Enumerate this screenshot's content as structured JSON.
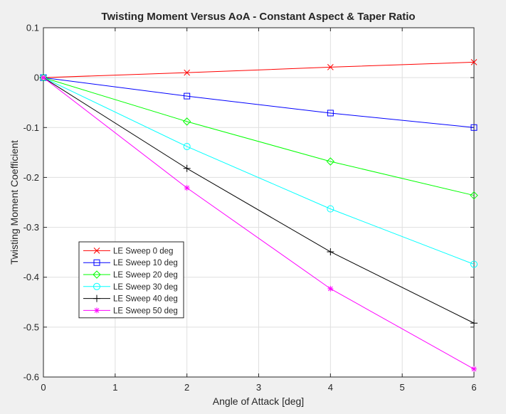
{
  "chart_data": {
    "type": "line",
    "title": "Twisting Moment Versus AoA - Constant Aspect & Taper Ratio",
    "xlabel": "Angle of Attack [deg]",
    "ylabel": "Twisting Moment Coefficient",
    "xlim": [
      0,
      6
    ],
    "ylim": [
      -0.6,
      0.1
    ],
    "xticks": [
      0,
      1,
      2,
      3,
      4,
      5,
      6
    ],
    "xtick_labels": [
      "0",
      "1",
      "2",
      "3",
      "4",
      "5",
      "6"
    ],
    "yticks": [
      0.1,
      0,
      -0.1,
      -0.2,
      -0.3,
      -0.4,
      -0.5,
      -0.6
    ],
    "ytick_labels": [
      "0.1",
      "0",
      "-0.1",
      "-0.2",
      "-0.3",
      "-0.4",
      "-0.5",
      "-0.6"
    ],
    "grid": true,
    "legend_position": "lower-left",
    "x": [
      0,
      2,
      4,
      6
    ],
    "series": [
      {
        "name": "LE Sweep 0 deg",
        "color": "#ff0000",
        "marker": "x",
        "values": [
          0,
          0.01,
          0.021,
          0.031
        ]
      },
      {
        "name": "LE Sweep 10 deg",
        "color": "#0000ff",
        "marker": "square",
        "values": [
          0,
          -0.037,
          -0.071,
          -0.1
        ]
      },
      {
        "name": "LE Sweep 20 deg",
        "color": "#00ff00",
        "marker": "diamond",
        "values": [
          0,
          -0.088,
          -0.168,
          -0.236
        ]
      },
      {
        "name": "LE Sweep 30 deg",
        "color": "#00ffff",
        "marker": "circle",
        "values": [
          0,
          -0.138,
          -0.263,
          -0.374
        ]
      },
      {
        "name": "LE Sweep 40 deg",
        "color": "#000000",
        "marker": "plus",
        "values": [
          0,
          -0.182,
          -0.349,
          -0.492
        ]
      },
      {
        "name": "LE Sweep 50 deg",
        "color": "#ff00ff",
        "marker": "asterisk",
        "values": [
          0,
          -0.221,
          -0.423,
          -0.584
        ]
      }
    ]
  }
}
